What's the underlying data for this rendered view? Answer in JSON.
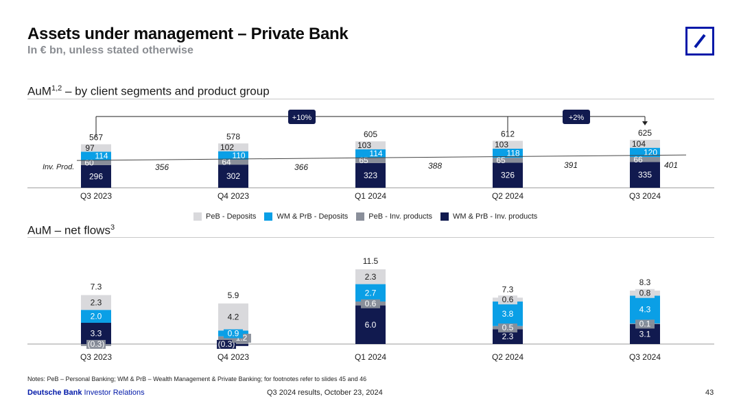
{
  "title": "Assets under management – Private Bank",
  "subtitle": "In € bn, unless stated otherwise",
  "aum_section": {
    "title": "AuM",
    "sup": "1,2",
    "title_rest": " – by client segments and product group"
  },
  "flows_section": {
    "title": "AuM – net flows",
    "sup": "3"
  },
  "legend": [
    {
      "label": "PeB - Deposits",
      "color": "#d9d9dc"
    },
    {
      "label": "WM & PrB - Deposits",
      "color": "#0a9fe6"
    },
    {
      "label": "PeB - Inv. products",
      "color": "#8a8f9a"
    },
    {
      "label": "WM & PrB - Inv. products",
      "color": "#111a4f"
    }
  ],
  "notes": "Notes: PeB – Personal Banking; WM & PrB – Wealth Management & Private Banking; for footnotes refer to slides 45 and 46",
  "footer": {
    "brand_bold": "Deutsche Bank",
    "brand_rest": " Investor Relations",
    "center": "Q3 2024 results, October 23, 2024",
    "page": "43"
  },
  "chart_data": [
    {
      "type": "bar",
      "stacked": true,
      "title": "AuM – by client segments and product group",
      "categories": [
        "Q3 2023",
        "Q4 2023",
        "Q1 2024",
        "Q2 2024",
        "Q3 2024"
      ],
      "series": [
        {
          "name": "WM & PrB - Inv. products",
          "values": [
            296,
            302,
            323,
            326,
            335
          ]
        },
        {
          "name": "PeB - Inv. products",
          "values": [
            60,
            64,
            65,
            65,
            66
          ]
        },
        {
          "name": "WM & PrB - Deposits",
          "values": [
            114,
            110,
            114,
            118,
            120
          ]
        },
        {
          "name": "PeB - Deposits",
          "values": [
            97,
            102,
            103,
            103,
            104
          ]
        }
      ],
      "totals": [
        "567",
        "578",
        "605",
        "612",
        "625"
      ],
      "inv_prod_label": "Inv. Prod.",
      "inv_prod_values": [
        "356",
        "366",
        "388",
        "391",
        "401"
      ],
      "growth_callouts": [
        "+10%",
        "+2%"
      ]
    },
    {
      "type": "bar",
      "stacked": true,
      "title": "AuM – net flows",
      "categories": [
        "Q3 2023",
        "Q4 2023",
        "Q1 2024",
        "Q2 2024",
        "Q3 2024"
      ],
      "series": [
        {
          "name": "WM & PrB - Inv. products",
          "values": [
            3.3,
            -0.3,
            6.0,
            2.3,
            3.1
          ],
          "labels": [
            "3.3",
            "(0.3)",
            "6.0",
            "2.3",
            "3.1"
          ]
        },
        {
          "name": "PeB - Inv. products",
          "values": [
            -0.3,
            1.2,
            0.6,
            0.5,
            0.1
          ],
          "labels": [
            "(0.3)",
            "1.2",
            "0.6",
            "0.5",
            "0.1"
          ]
        },
        {
          "name": "WM & PrB - Deposits",
          "values": [
            2.0,
            0.9,
            2.7,
            3.8,
            4.3
          ],
          "labels": [
            "2.0",
            "0.9",
            "2.7",
            "3.8",
            "4.3"
          ]
        },
        {
          "name": "PeB - Deposits",
          "values": [
            2.3,
            4.2,
            2.3,
            0.6,
            0.8
          ],
          "labels": [
            "2.3",
            "4.2",
            "2.3",
            "0.6",
            "0.8"
          ]
        }
      ],
      "totals": [
        "7.3",
        "5.9",
        "11.5",
        "7.3",
        "8.3"
      ]
    }
  ]
}
